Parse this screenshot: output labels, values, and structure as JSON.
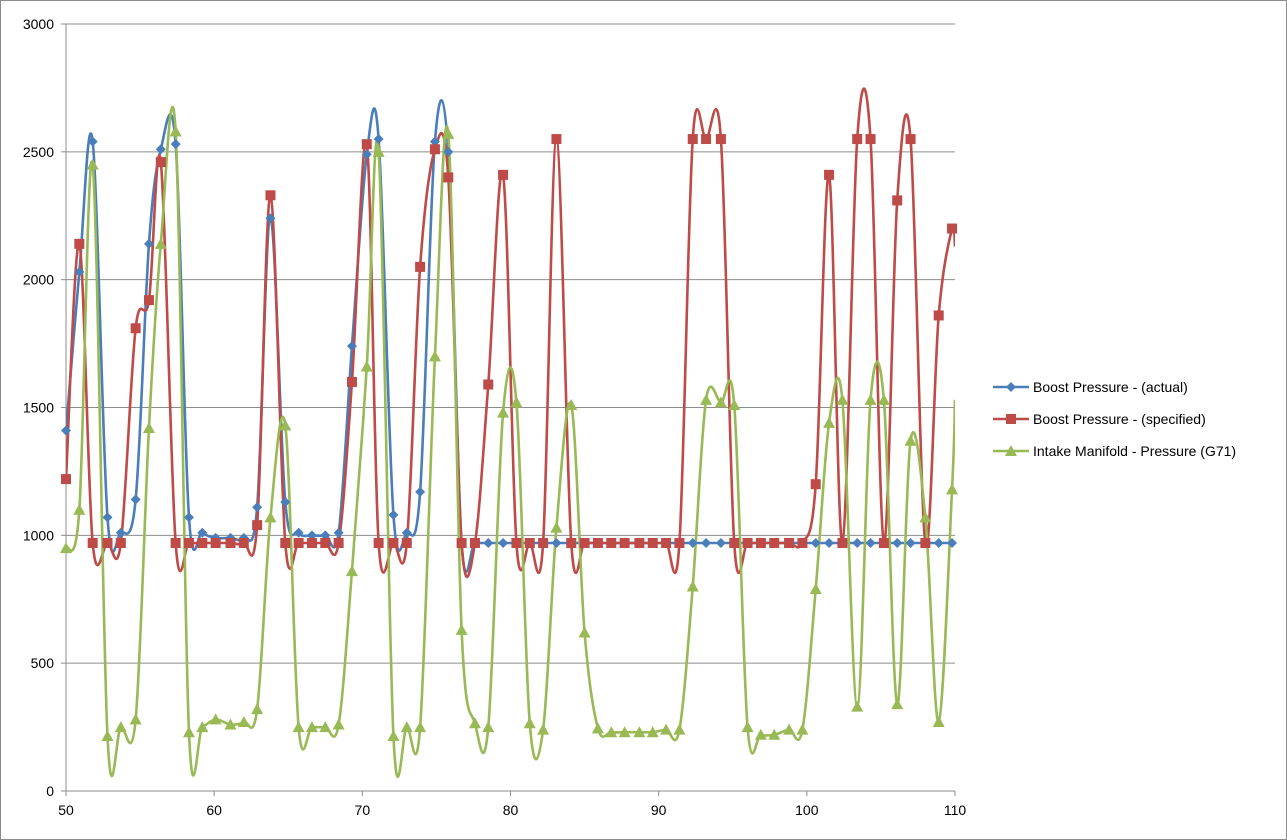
{
  "chart_data": {
    "type": "line",
    "title": "",
    "xlabel": "",
    "ylabel": "",
    "xlim": [
      50,
      110
    ],
    "ylim": [
      0,
      3000
    ],
    "x_ticks": [
      50,
      60,
      70,
      80,
      90,
      100,
      110
    ],
    "y_ticks": [
      0,
      500,
      1000,
      1500,
      2000,
      2500,
      3000
    ],
    "grid": "horizontal",
    "legend_position": "right",
    "series": [
      {
        "name": "Boost Pressure - (actual)",
        "color": "#4a7ebb",
        "marker": "diamond",
        "points": [
          [
            50,
            1410
          ],
          [
            50.9,
            2030
          ],
          [
            51.8,
            2540
          ],
          [
            52.8,
            1070
          ],
          [
            53.7,
            1010
          ],
          [
            54.7,
            1140
          ],
          [
            55.6,
            2140
          ],
          [
            56.4,
            2510
          ],
          [
            57.4,
            2530
          ],
          [
            58.3,
            1070
          ],
          [
            59.2,
            1010
          ],
          [
            60.1,
            990
          ],
          [
            61.1,
            990
          ],
          [
            62.0,
            990
          ],
          [
            62.9,
            1110
          ],
          [
            63.8,
            2240
          ],
          [
            64.8,
            1130
          ],
          [
            65.7,
            1010
          ],
          [
            66.6,
            1000
          ],
          [
            67.5,
            1000
          ],
          [
            68.4,
            1010
          ],
          [
            69.3,
            1740
          ],
          [
            70.3,
            2490
          ],
          [
            71.1,
            2550
          ],
          [
            72.1,
            1080
          ],
          [
            73.0,
            1010
          ],
          [
            73.9,
            1170
          ],
          [
            74.9,
            2540
          ],
          [
            75.8,
            2500
          ],
          [
            76.7,
            970
          ],
          [
            77.6,
            970
          ],
          [
            78.5,
            970
          ],
          [
            79.5,
            970
          ],
          [
            80.4,
            970
          ],
          [
            81.3,
            970
          ],
          [
            82.2,
            970
          ],
          [
            83.1,
            970
          ],
          [
            84.1,
            970
          ],
          [
            85.0,
            970
          ],
          [
            85.9,
            970
          ],
          [
            86.8,
            970
          ],
          [
            87.7,
            970
          ],
          [
            88.7,
            970
          ],
          [
            89.6,
            970
          ],
          [
            90.5,
            970
          ],
          [
            91.4,
            970
          ],
          [
            92.3,
            970
          ],
          [
            93.2,
            970
          ],
          [
            94.2,
            970
          ],
          [
            95.1,
            970
          ],
          [
            96.0,
            970
          ],
          [
            96.9,
            970
          ],
          [
            97.8,
            970
          ],
          [
            98.8,
            970
          ],
          [
            99.7,
            970
          ],
          [
            100.6,
            970
          ],
          [
            101.5,
            970
          ],
          [
            102.4,
            970
          ],
          [
            103.4,
            970
          ],
          [
            104.3,
            970
          ],
          [
            105.2,
            970
          ],
          [
            106.1,
            970
          ],
          [
            107.0,
            970
          ],
          [
            108.0,
            970
          ],
          [
            108.9,
            970
          ],
          [
            109.8,
            970
          ],
          [
            110,
            970
          ]
        ]
      },
      {
        "name": "Boost Pressure - (specified)",
        "color": "#be4b48",
        "marker": "square",
        "points": [
          [
            50,
            1220
          ],
          [
            50.9,
            2140
          ],
          [
            51.8,
            970
          ],
          [
            52.8,
            970
          ],
          [
            53.7,
            970
          ],
          [
            54.7,
            1810
          ],
          [
            55.6,
            1920
          ],
          [
            56.4,
            2460
          ],
          [
            57.4,
            970
          ],
          [
            58.3,
            970
          ],
          [
            59.2,
            970
          ],
          [
            60.1,
            970
          ],
          [
            61.1,
            970
          ],
          [
            62.0,
            970
          ],
          [
            62.9,
            1040
          ],
          [
            63.8,
            2330
          ],
          [
            64.8,
            970
          ],
          [
            65.7,
            970
          ],
          [
            66.6,
            970
          ],
          [
            67.5,
            970
          ],
          [
            68.4,
            970
          ],
          [
            69.3,
            1600
          ],
          [
            70.3,
            2530
          ],
          [
            71.1,
            970
          ],
          [
            72.1,
            970
          ],
          [
            73.0,
            970
          ],
          [
            73.9,
            2050
          ],
          [
            74.9,
            2510
          ],
          [
            75.8,
            2400
          ],
          [
            76.7,
            970
          ],
          [
            77.6,
            970
          ],
          [
            78.5,
            1590
          ],
          [
            79.5,
            2410
          ],
          [
            80.4,
            970
          ],
          [
            81.3,
            970
          ],
          [
            82.2,
            970
          ],
          [
            83.1,
            2550
          ],
          [
            84.1,
            970
          ],
          [
            85.0,
            970
          ],
          [
            85.9,
            970
          ],
          [
            86.8,
            970
          ],
          [
            87.7,
            970
          ],
          [
            88.7,
            970
          ],
          [
            89.6,
            970
          ],
          [
            90.5,
            970
          ],
          [
            91.4,
            970
          ],
          [
            92.3,
            2550
          ],
          [
            93.2,
            2550
          ],
          [
            94.2,
            2550
          ],
          [
            95.1,
            970
          ],
          [
            96.0,
            970
          ],
          [
            96.9,
            970
          ],
          [
            97.8,
            970
          ],
          [
            98.8,
            970
          ],
          [
            99.7,
            970
          ],
          [
            100.6,
            1200
          ],
          [
            101.5,
            2410
          ],
          [
            102.4,
            970
          ],
          [
            103.4,
            2550
          ],
          [
            104.3,
            2550
          ],
          [
            105.2,
            970
          ],
          [
            106.1,
            2310
          ],
          [
            107.0,
            2550
          ],
          [
            108.0,
            970
          ],
          [
            108.9,
            1860
          ],
          [
            109.8,
            2200
          ],
          [
            110,
            2130
          ]
        ]
      },
      {
        "name": "Intake Manifold - Pressure (G71)",
        "color": "#98b954",
        "marker": "triangle",
        "points": [
          [
            50,
            950
          ],
          [
            50.9,
            1100
          ],
          [
            51.8,
            2450
          ],
          [
            52.8,
            215
          ],
          [
            53.7,
            250
          ],
          [
            54.7,
            280
          ],
          [
            55.6,
            1420
          ],
          [
            56.4,
            2140
          ],
          [
            57.4,
            2580
          ],
          [
            58.3,
            230
          ],
          [
            59.2,
            250
          ],
          [
            60.1,
            280
          ],
          [
            61.1,
            260
          ],
          [
            62.0,
            270
          ],
          [
            62.9,
            320
          ],
          [
            63.8,
            1070
          ],
          [
            64.8,
            1430
          ],
          [
            65.7,
            250
          ],
          [
            66.6,
            250
          ],
          [
            67.5,
            250
          ],
          [
            68.4,
            260
          ],
          [
            69.3,
            860
          ],
          [
            70.3,
            1660
          ],
          [
            71.1,
            2500
          ],
          [
            72.1,
            215
          ],
          [
            73.0,
            250
          ],
          [
            73.9,
            250
          ],
          [
            74.9,
            1700
          ],
          [
            75.8,
            2570
          ],
          [
            76.7,
            630
          ],
          [
            77.6,
            265
          ],
          [
            78.5,
            250
          ],
          [
            79.5,
            1480
          ],
          [
            80.4,
            1520
          ],
          [
            81.3,
            265
          ],
          [
            82.2,
            240
          ],
          [
            83.1,
            1030
          ],
          [
            84.1,
            1510
          ],
          [
            85.0,
            620
          ],
          [
            85.9,
            245
          ],
          [
            86.8,
            230
          ],
          [
            87.7,
            230
          ],
          [
            88.7,
            230
          ],
          [
            89.6,
            230
          ],
          [
            90.5,
            240
          ],
          [
            91.4,
            240
          ],
          [
            92.3,
            800
          ],
          [
            93.2,
            1530
          ],
          [
            94.2,
            1520
          ],
          [
            95.1,
            1510
          ],
          [
            96.0,
            250
          ],
          [
            96.9,
            220
          ],
          [
            97.8,
            220
          ],
          [
            98.8,
            240
          ],
          [
            99.7,
            240
          ],
          [
            100.6,
            790
          ],
          [
            101.5,
            1440
          ],
          [
            102.4,
            1530
          ],
          [
            103.4,
            330
          ],
          [
            104.3,
            1530
          ],
          [
            105.2,
            1530
          ],
          [
            106.1,
            340
          ],
          [
            107.0,
            1370
          ],
          [
            108.0,
            1070
          ],
          [
            108.9,
            270
          ],
          [
            109.8,
            1180
          ],
          [
            110,
            1530
          ]
        ]
      }
    ]
  }
}
